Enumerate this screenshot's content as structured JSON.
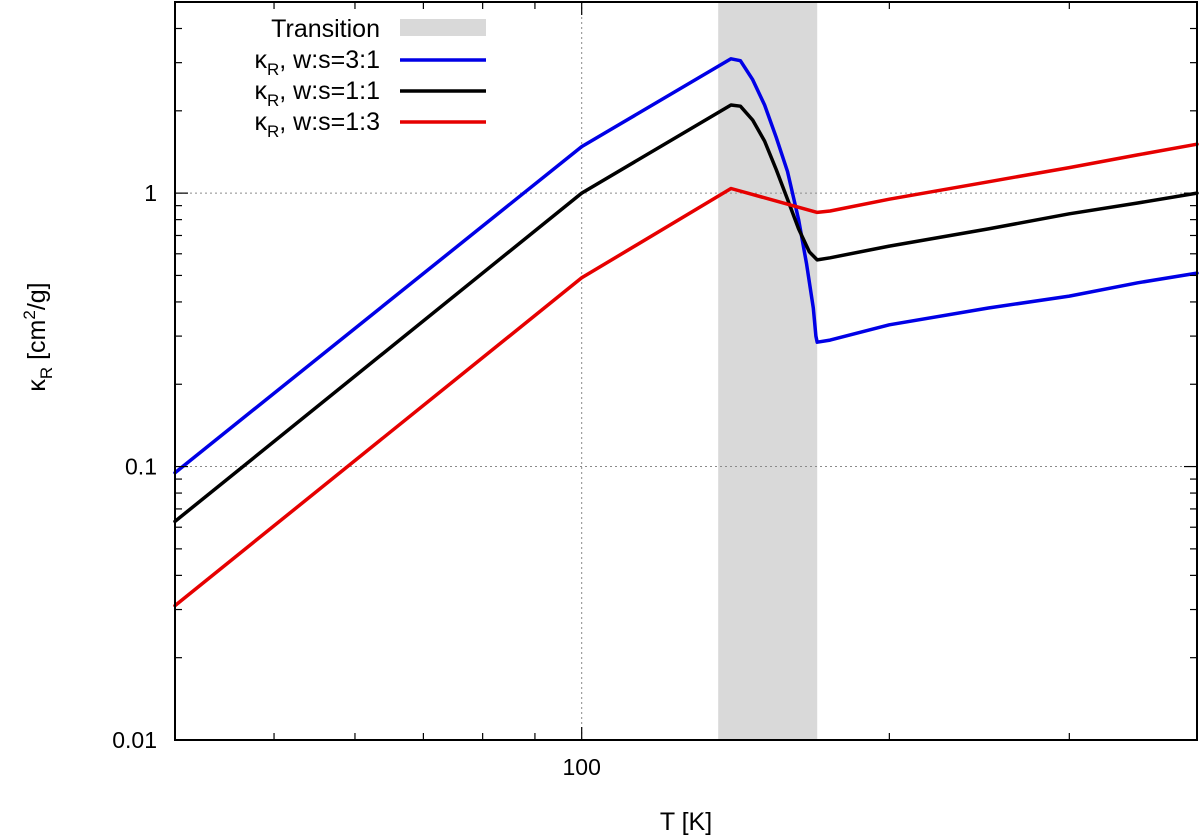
{
  "chart_data": {
    "type": "line",
    "xlabel": "T [K]",
    "ylabel": "κR [cm2/g]",
    "ylabel_parts": {
      "symbol": "κ",
      "sub": "R",
      "unit_pre": " [cm",
      "sup": "2",
      "unit_post": "/g]"
    },
    "xscale": "log",
    "yscale": "log",
    "xlim": [
      40,
      400
    ],
    "ylim": [
      0.01,
      5
    ],
    "x_ticks": [
      {
        "value": 100,
        "label": "100"
      }
    ],
    "y_ticks": [
      {
        "value": 0.01,
        "label": "0.01"
      },
      {
        "value": 0.1,
        "label": "0.1"
      },
      {
        "value": 1,
        "label": "1"
      }
    ],
    "grid": true,
    "legend_position": "top-left",
    "transition": {
      "label": "Transition",
      "x_range": [
        136,
        170
      ],
      "color": "#d9d9d9"
    },
    "series": [
      {
        "name": "κR, w:s=3:1",
        "legend": {
          "symbol": "κ",
          "sub": "R",
          "rest": ", w:s=3:1"
        },
        "color": "#0000e6",
        "x": [
          40,
          100,
          140,
          143,
          147,
          151,
          155,
          159,
          163,
          166,
          168.5,
          169.5,
          170,
          175,
          200,
          250,
          300,
          350,
          400
        ],
        "y": [
          0.095,
          1.48,
          3.1,
          3.05,
          2.6,
          2.1,
          1.6,
          1.2,
          0.8,
          0.55,
          0.38,
          0.3,
          0.285,
          0.29,
          0.33,
          0.38,
          0.42,
          0.47,
          0.51
        ]
      },
      {
        "name": "κR, w:s=1:1",
        "legend": {
          "symbol": "κ",
          "sub": "R",
          "rest": ", w:s=1:1"
        },
        "color": "#000000",
        "x": [
          40,
          100,
          140,
          143,
          147,
          151,
          155,
          159,
          163,
          167,
          170,
          175,
          200,
          250,
          300,
          350,
          400
        ],
        "y": [
          0.063,
          1.0,
          2.1,
          2.08,
          1.85,
          1.55,
          1.22,
          0.95,
          0.74,
          0.61,
          0.57,
          0.58,
          0.64,
          0.74,
          0.84,
          0.92,
          1.0
        ]
      },
      {
        "name": "κR, w:s=1:3",
        "legend": {
          "symbol": "κ",
          "sub": "R",
          "rest": ", w:s=1:3"
        },
        "color": "#e60000",
        "x": [
          40,
          100,
          140,
          170,
          175,
          200,
          250,
          300,
          350,
          400
        ],
        "y": [
          0.031,
          0.49,
          1.04,
          0.85,
          0.86,
          0.95,
          1.1,
          1.24,
          1.38,
          1.51
        ]
      }
    ]
  }
}
